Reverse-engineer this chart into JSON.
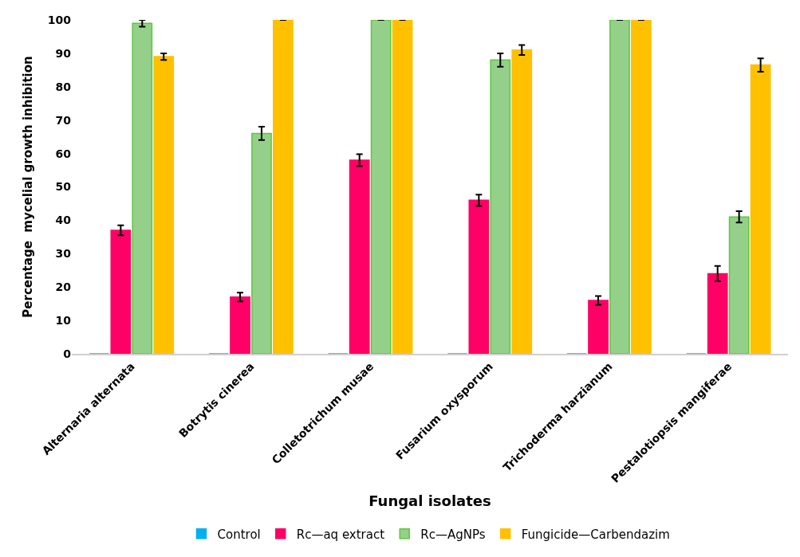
{
  "chart_data": {
    "type": "bar",
    "xlabel": "Fungal isolates",
    "ylabel": "Percentage  mycelial growth inhibition",
    "categories": [
      "Alternaria alternata",
      "Botrytis cinerea",
      "Colletotrichum musae",
      "Fusarium oxysporum",
      "Trichoderma harzianum",
      "Pestalotiopsis mangiferae"
    ],
    "series": [
      {
        "name": "Control",
        "color": "#00b0f0",
        "values": [
          0,
          0,
          0,
          0,
          0,
          0
        ]
      },
      {
        "name": "Rc—aq extract",
        "color": "#ff0066",
        "values": [
          37,
          17,
          58,
          46,
          16,
          24
        ],
        "errors": [
          1.5,
          1.3,
          1.8,
          1.7,
          1.3,
          2.3
        ]
      },
      {
        "name": "Rc—AgNPs",
        "color": "#95d08a",
        "values": [
          99,
          66,
          100,
          88,
          100,
          41
        ],
        "errors": [
          1,
          2,
          0,
          2,
          0,
          1.7
        ]
      },
      {
        "name": "Fungicide—Carbendazim",
        "color": "#ffc000",
        "values": [
          89,
          100,
          100,
          91,
          100,
          86.5
        ],
        "errors": [
          1,
          0,
          0,
          1.5,
          0,
          2
        ]
      }
    ],
    "ylim": [
      0,
      100
    ],
    "yticks": [
      0,
      10,
      20,
      30,
      40,
      50,
      60,
      70,
      80,
      90,
      100
    ],
    "legend": "bottom"
  }
}
